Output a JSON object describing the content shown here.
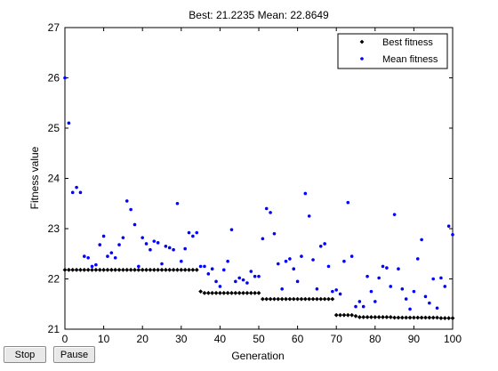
{
  "buttons": {
    "stop_label": "Stop",
    "pause_label": "Pause"
  },
  "colors": {
    "best": "#000000",
    "mean": "#0000ff",
    "axes": "#000000"
  },
  "chart_data": {
    "type": "scatter",
    "title": "Best: 21.2235 Mean: 22.8649",
    "xlabel": "Generation",
    "ylabel": "Fitness value",
    "xlim": [
      0,
      100
    ],
    "ylim": [
      21,
      27
    ],
    "xticks": [
      "0",
      "10",
      "20",
      "30",
      "40",
      "50",
      "60",
      "70",
      "80",
      "90",
      "100"
    ],
    "yticks": [
      "21",
      "22",
      "23",
      "24",
      "25",
      "26",
      "27"
    ],
    "legend_position": "top-right",
    "grid": false,
    "series": [
      {
        "name": "Best fitness",
        "marker": "diamond",
        "x": [
          0,
          1,
          2,
          3,
          4,
          5,
          6,
          7,
          8,
          9,
          10,
          11,
          12,
          13,
          14,
          15,
          16,
          17,
          18,
          19,
          20,
          21,
          22,
          23,
          24,
          25,
          26,
          27,
          28,
          29,
          30,
          31,
          32,
          33,
          34,
          35,
          36,
          37,
          38,
          39,
          40,
          41,
          42,
          43,
          44,
          45,
          46,
          47,
          48,
          49,
          50,
          51,
          52,
          53,
          54,
          55,
          56,
          57,
          58,
          59,
          60,
          61,
          62,
          63,
          64,
          65,
          66,
          67,
          68,
          69,
          70,
          71,
          72,
          73,
          74,
          75,
          76,
          77,
          78,
          79,
          80,
          81,
          82,
          83,
          84,
          85,
          86,
          87,
          88,
          89,
          90,
          91,
          92,
          93,
          94,
          95,
          96,
          97,
          98,
          99,
          100
        ],
        "y": [
          22.18,
          22.18,
          22.18,
          22.18,
          22.18,
          22.18,
          22.18,
          22.18,
          22.18,
          22.18,
          22.18,
          22.18,
          22.18,
          22.18,
          22.18,
          22.18,
          22.18,
          22.18,
          22.18,
          22.18,
          22.18,
          22.18,
          22.18,
          22.18,
          22.18,
          22.18,
          22.18,
          22.18,
          22.18,
          22.18,
          22.18,
          22.18,
          22.18,
          22.18,
          22.18,
          21.75,
          21.72,
          21.72,
          21.72,
          21.72,
          21.72,
          21.72,
          21.72,
          21.72,
          21.72,
          21.72,
          21.72,
          21.72,
          21.72,
          21.72,
          21.72,
          21.6,
          21.6,
          21.6,
          21.6,
          21.6,
          21.6,
          21.6,
          21.6,
          21.6,
          21.6,
          21.6,
          21.6,
          21.6,
          21.6,
          21.6,
          21.6,
          21.6,
          21.6,
          21.6,
          21.28,
          21.28,
          21.28,
          21.28,
          21.28,
          21.26,
          21.24,
          21.24,
          21.24,
          21.24,
          21.24,
          21.24,
          21.24,
          21.24,
          21.24,
          21.23,
          21.23,
          21.23,
          21.23,
          21.23,
          21.23,
          21.23,
          21.23,
          21.23,
          21.23,
          21.23,
          21.23,
          21.22,
          21.22,
          21.22,
          21.22
        ]
      },
      {
        "name": "Mean fitness",
        "marker": "dot",
        "x": [
          0,
          1,
          2,
          3,
          4,
          5,
          6,
          7,
          8,
          9,
          10,
          11,
          12,
          13,
          14,
          15,
          16,
          17,
          18,
          19,
          20,
          21,
          22,
          23,
          24,
          25,
          26,
          27,
          28,
          29,
          30,
          31,
          32,
          33,
          34,
          35,
          36,
          37,
          38,
          39,
          40,
          41,
          42,
          43,
          44,
          45,
          46,
          47,
          48,
          49,
          50,
          51,
          52,
          53,
          54,
          55,
          56,
          57,
          58,
          59,
          60,
          61,
          62,
          63,
          64,
          65,
          66,
          67,
          68,
          69,
          70,
          71,
          72,
          73,
          74,
          75,
          76,
          77,
          78,
          79,
          80,
          81,
          82,
          83,
          84,
          85,
          86,
          87,
          88,
          89,
          90,
          91,
          92,
          93,
          94,
          95,
          96,
          97,
          98,
          99,
          100
        ],
        "y": [
          26.0,
          25.1,
          23.72,
          23.82,
          23.72,
          22.45,
          22.42,
          22.25,
          22.28,
          22.68,
          22.85,
          22.45,
          22.52,
          22.42,
          22.68,
          22.82,
          23.55,
          23.38,
          23.08,
          22.25,
          22.82,
          22.7,
          22.58,
          22.75,
          22.72,
          22.3,
          22.65,
          22.62,
          22.58,
          23.5,
          22.35,
          22.6,
          22.92,
          22.85,
          22.92,
          22.25,
          22.25,
          22.1,
          22.2,
          21.95,
          21.85,
          22.18,
          22.35,
          22.98,
          21.95,
          22.02,
          21.98,
          21.92,
          22.15,
          22.05,
          22.05,
          22.8,
          23.4,
          23.32,
          22.9,
          22.3,
          21.8,
          22.35,
          22.4,
          22.2,
          21.95,
          22.45,
          23.7,
          23.25,
          22.38,
          21.8,
          22.65,
          22.7,
          22.25,
          21.75,
          21.78,
          21.7,
          22.35,
          23.52,
          22.45,
          21.45,
          21.55,
          21.45,
          22.05,
          21.75,
          21.55,
          22.02,
          22.25,
          22.22,
          21.85,
          23.28,
          22.2,
          21.8,
          21.6,
          21.4,
          21.75,
          22.4,
          22.78,
          21.65,
          21.52,
          22.0,
          21.42,
          22.02,
          21.85,
          23.05,
          22.88
        ]
      }
    ]
  }
}
